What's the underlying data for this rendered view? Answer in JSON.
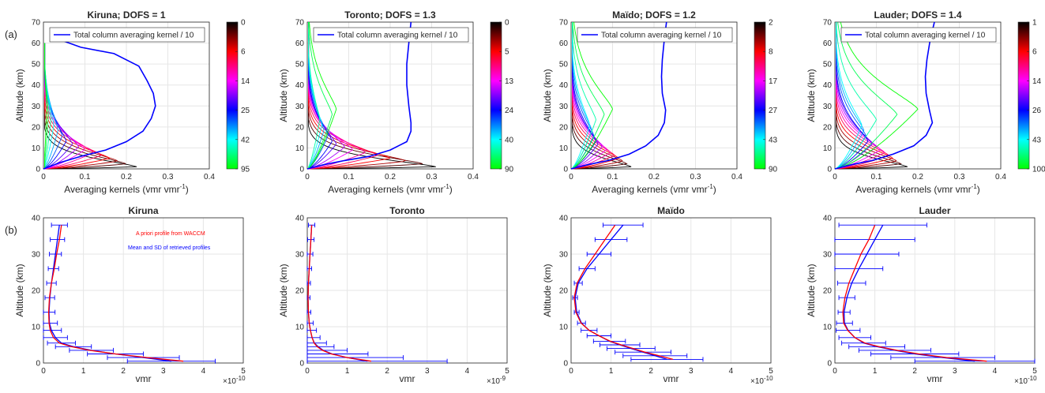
{
  "figure": {
    "row_labels": [
      "(a)",
      "(b)"
    ]
  },
  "top_row": {
    "xlabel": "Averaging kernels (vmr vmr",
    "xlabel_sup": "-1",
    "xlabel_end": ")",
    "ylabel": "Altitude (km)",
    "xlim": [
      0,
      0.4
    ],
    "ylim": [
      0,
      70
    ],
    "xticks": [
      "0",
      "0.1",
      "0.2",
      "0.3",
      "0.4"
    ],
    "yticks": [
      "0",
      "10",
      "20",
      "30",
      "40",
      "50",
      "60",
      "70"
    ],
    "legend": "Total column averaging kernel / 10",
    "colormap": [
      "#00ff00",
      "#00ffff",
      "#0000ff",
      "#ff00ff",
      "#ff0000",
      "#000000"
    ]
  },
  "bottom_row": {
    "xlabel": "vmr",
    "ylabel": "Altitude (km)",
    "xlim": [
      0,
      5
    ],
    "ylim": [
      0,
      40
    ],
    "xticks": [
      "0",
      "1",
      "2",
      "3",
      "4",
      "5"
    ],
    "yticks": [
      "0",
      "10",
      "20",
      "30",
      "40"
    ],
    "apriori_label": "A priori profile from WACCM",
    "retrieved_label": "Mean and SD of retrieved profiles",
    "apriori_color": "#ff0000",
    "retrieved_color": "#0000ff"
  },
  "chart_data": [
    {
      "type": "line",
      "title": "Kiruna; DOFS = 1",
      "colorbar_ticks": [
        "0",
        "6",
        "14",
        "25",
        "42",
        "95"
      ],
      "total_column": {
        "x": [
          0,
          0.04,
          0.09,
          0.15,
          0.2,
          0.24,
          0.26,
          0.27,
          0.265,
          0.25,
          0.23,
          0.17,
          0.09,
          0.02
        ],
        "y": [
          0,
          3,
          6,
          9,
          13,
          18,
          24,
          30,
          36,
          42,
          49,
          55,
          58,
          63
        ]
      },
      "kernel_peaks": [
        0.225,
        0.2,
        0.18,
        0.16,
        0.14,
        0.12,
        0.1,
        0.085,
        0.07,
        0.055,
        0.045,
        0.035,
        0.025,
        0.018,
        0.012,
        0.008
      ],
      "kernel_top": 60
    },
    {
      "type": "line",
      "title": "Toronto; DOFS = 1.3",
      "colorbar_ticks": [
        "0",
        "5",
        "13",
        "24",
        "40",
        "90"
      ],
      "total_column": {
        "x": [
          0,
          0.04,
          0.09,
          0.15,
          0.2,
          0.24,
          0.25,
          0.25,
          0.245,
          0.24,
          0.24,
          0.245,
          0.25
        ],
        "y": [
          0,
          2,
          4,
          6,
          9,
          13,
          18,
          22,
          30,
          40,
          50,
          60,
          70
        ]
      },
      "kernel_peaks": [
        0.31,
        0.28,
        0.24,
        0.2,
        0.17,
        0.14,
        0.11,
        0.09,
        0.07,
        0.06,
        0.05,
        0.04,
        0.035,
        0.03,
        0.06,
        0.07
      ],
      "kernel_top": 70
    },
    {
      "type": "line",
      "title": "Maïdo; DOFS = 1.2",
      "colorbar_ticks": [
        "2",
        "8",
        "17",
        "27",
        "43",
        "90"
      ],
      "total_column": {
        "x": [
          0,
          0.04,
          0.09,
          0.14,
          0.18,
          0.21,
          0.225,
          0.228,
          0.22,
          0.218,
          0.22,
          0.225,
          0.23
        ],
        "y": [
          0,
          2,
          4,
          7,
          11,
          16,
          22,
          28,
          36,
          44,
          52,
          62,
          70
        ]
      },
      "kernel_peaks": [
        0.145,
        0.135,
        0.125,
        0.115,
        0.105,
        0.095,
        0.085,
        0.075,
        0.065,
        0.06,
        0.055,
        0.05,
        0.045,
        0.06,
        0.08,
        0.1
      ],
      "kernel_top": 70
    },
    {
      "type": "line",
      "title": "Lauder; DOFS = 1.4",
      "colorbar_ticks": [
        "1",
        "6",
        "14",
        "26",
        "43",
        "100"
      ],
      "total_column": {
        "x": [
          0,
          0.04,
          0.09,
          0.14,
          0.19,
          0.22,
          0.235,
          0.228,
          0.22,
          0.218,
          0.222,
          0.23,
          0.24
        ],
        "y": [
          0,
          2,
          4,
          7,
          11,
          16,
          22,
          28,
          36,
          44,
          52,
          62,
          70
        ]
      },
      "kernel_peaks": [
        0.175,
        0.16,
        0.15,
        0.14,
        0.13,
        0.12,
        0.11,
        0.1,
        0.09,
        0.08,
        0.075,
        0.07,
        0.065,
        0.1,
        0.15,
        0.2
      ],
      "kernel_top": 70
    },
    {
      "type": "line",
      "title": "Kiruna",
      "x_exponent_base": "×10",
      "x_exponent_power": "-10",
      "apriori": {
        "x": [
          3.5,
          2.6,
          1.8,
          1.15,
          0.7,
          0.4,
          0.25,
          0.17,
          0.14,
          0.13,
          0.15,
          0.2,
          0.27,
          0.33,
          0.4,
          0.45
        ],
        "y": [
          0.5,
          1.5,
          2.5,
          3.5,
          4.5,
          5.5,
          7,
          9,
          11,
          14,
          18,
          22,
          26,
          30,
          34,
          38
        ]
      },
      "retrieved": {
        "x": [
          3.2,
          2.5,
          1.8,
          1.2,
          0.75,
          0.45,
          0.3,
          0.2,
          0.15,
          0.14,
          0.16,
          0.2,
          0.25,
          0.3,
          0.35,
          0.4
        ],
        "y": [
          0.5,
          1.5,
          2.5,
          3.5,
          4.5,
          5.5,
          7,
          9,
          11,
          14,
          18,
          22,
          26,
          30,
          34,
          38
        ],
        "sd": [
          1.1,
          0.9,
          0.7,
          0.55,
          0.45,
          0.35,
          0.3,
          0.25,
          0.2,
          0.15,
          0.12,
          0.12,
          0.13,
          0.15,
          0.18,
          0.2
        ]
      }
    },
    {
      "type": "line",
      "title": "Toronto",
      "x_exponent_base": "×10",
      "x_exponent_power": "-9",
      "apriori": {
        "x": [
          1.6,
          1.0,
          0.6,
          0.38,
          0.25,
          0.17,
          0.12,
          0.08,
          0.05,
          0.03,
          0.02,
          0.03,
          0.05,
          0.07,
          0.09,
          0.11
        ],
        "y": [
          0.5,
          1.5,
          2.5,
          3.5,
          4.5,
          5.5,
          7,
          9,
          11,
          14,
          18,
          22,
          26,
          30,
          34,
          38
        ]
      },
      "retrieved": {
        "x": [
          1.5,
          1.0,
          0.62,
          0.4,
          0.27,
          0.18,
          0.12,
          0.08,
          0.05,
          0.03,
          0.02,
          0.03,
          0.05,
          0.07,
          0.09,
          0.11
        ],
        "y": [
          0.5,
          1.5,
          2.5,
          3.5,
          4.5,
          5.5,
          7,
          9,
          11,
          14,
          18,
          22,
          26,
          30,
          34,
          38
        ],
        "sd": [
          2.0,
          1.4,
          0.9,
          0.6,
          0.4,
          0.3,
          0.2,
          0.15,
          0.1,
          0.06,
          0.05,
          0.05,
          0.06,
          0.07,
          0.08,
          0.08
        ]
      }
    },
    {
      "type": "line",
      "title": "Maïdo",
      "x_exponent_base": "×10",
      "x_exponent_power": "-10",
      "apriori": {
        "x": [
          2.55,
          2.2,
          1.85,
          1.55,
          1.25,
          0.98,
          0.7,
          0.45,
          0.25,
          0.12,
          0.08,
          0.15,
          0.35,
          0.6,
          0.85,
          1.1
        ],
        "y": [
          1,
          2,
          3,
          4,
          5,
          6,
          7.5,
          9,
          11,
          14,
          18,
          22,
          26,
          30,
          34,
          38
        ]
      },
      "retrieved": {
        "x": [
          2.4,
          2.1,
          1.8,
          1.5,
          1.22,
          0.96,
          0.7,
          0.45,
          0.26,
          0.14,
          0.1,
          0.18,
          0.4,
          0.7,
          1.0,
          1.3
        ],
        "y": [
          1,
          2,
          3,
          4,
          5,
          6,
          7.5,
          9,
          11,
          14,
          18,
          22,
          26,
          30,
          34,
          38
        ],
        "sd": [
          0.9,
          0.8,
          0.7,
          0.6,
          0.5,
          0.4,
          0.3,
          0.2,
          0.1,
          0.06,
          0.06,
          0.1,
          0.2,
          0.3,
          0.4,
          0.5
        ]
      }
    },
    {
      "type": "line",
      "title": "Lauder",
      "x_exponent_base": "×10",
      "x_exponent_power": "-10",
      "apriori": {
        "x": [
          3.8,
          2.8,
          2.1,
          1.55,
          1.1,
          0.75,
          0.5,
          0.32,
          0.22,
          0.2,
          0.25,
          0.35,
          0.5,
          0.65,
          0.85,
          1.0
        ],
        "y": [
          0.5,
          1.5,
          2.5,
          3.5,
          4.5,
          5.5,
          7,
          9,
          11,
          14,
          18,
          22,
          26,
          30,
          34,
          38
        ]
      },
      "retrieved": {
        "x": [
          3.5,
          2.7,
          2.0,
          1.5,
          1.05,
          0.72,
          0.5,
          0.33,
          0.24,
          0.23,
          0.3,
          0.42,
          0.6,
          0.8,
          1.0,
          1.2
        ],
        "y": [
          0.5,
          1.5,
          2.5,
          3.5,
          4.5,
          5.5,
          7,
          9,
          11,
          14,
          18,
          22,
          26,
          30,
          34,
          38
        ],
        "sd": [
          1.5,
          1.3,
          1.1,
          0.9,
          0.7,
          0.55,
          0.4,
          0.3,
          0.2,
          0.15,
          0.2,
          0.35,
          0.6,
          0.8,
          1.0,
          1.1
        ]
      }
    }
  ]
}
